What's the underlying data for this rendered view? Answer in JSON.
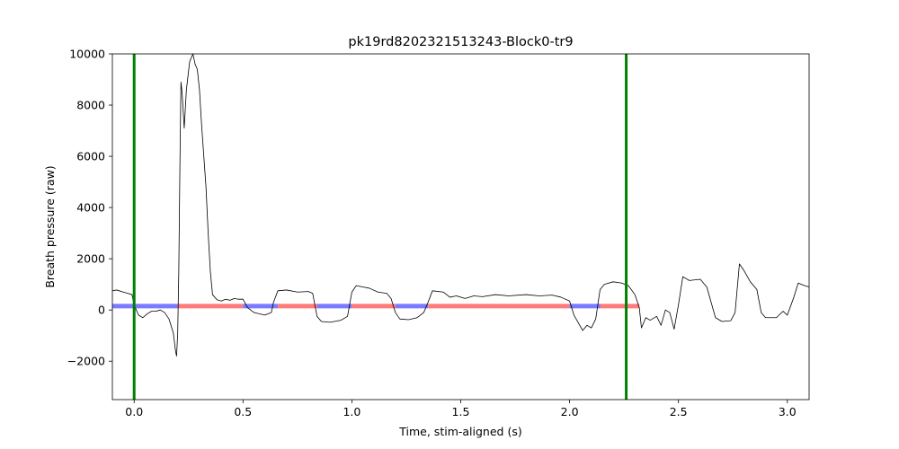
{
  "chart_data": {
    "type": "line",
    "title": "pk19rd8202321513243-Block0-tr9",
    "xlabel": "Time, stim-aligned (s)",
    "ylabel": "Breath pressure (raw)",
    "xlim": [
      -0.1,
      3.1
    ],
    "ylim": [
      -3500,
      10000
    ],
    "xticks": [
      0.0,
      0.5,
      1.0,
      1.5,
      2.0,
      2.5,
      3.0
    ],
    "xtick_labels": [
      "0.0",
      "0.5",
      "1.0",
      "1.5",
      "2.0",
      "2.5",
      "3.0"
    ],
    "yticks": [
      -2000,
      0,
      2000,
      4000,
      6000,
      8000,
      10000
    ],
    "ytick_labels": [
      "−2000",
      "0",
      "2000",
      "4000",
      "6000",
      "8000",
      "10000"
    ],
    "grid": false,
    "series": [
      {
        "color": "#000000",
        "points": [
          [
            -0.1,
            750
          ],
          [
            -0.08,
            780
          ],
          [
            -0.05,
            700
          ],
          [
            -0.03,
            650
          ],
          [
            -0.01,
            600
          ],
          [
            0.0,
            200
          ],
          [
            0.02,
            -200
          ],
          [
            0.04,
            -300
          ],
          [
            0.06,
            -150
          ],
          [
            0.08,
            -50
          ],
          [
            0.1,
            -50
          ],
          [
            0.12,
            0
          ],
          [
            0.14,
            -100
          ],
          [
            0.16,
            -350
          ],
          [
            0.18,
            -900
          ],
          [
            0.19,
            -1600
          ],
          [
            0.195,
            -1800
          ],
          [
            0.2,
            -900
          ],
          [
            0.205,
            1500
          ],
          [
            0.21,
            5500
          ],
          [
            0.215,
            8900
          ],
          [
            0.22,
            8500
          ],
          [
            0.23,
            7100
          ],
          [
            0.24,
            8600
          ],
          [
            0.255,
            9700
          ],
          [
            0.27,
            10000
          ],
          [
            0.28,
            9600
          ],
          [
            0.29,
            9400
          ],
          [
            0.3,
            8600
          ],
          [
            0.31,
            7200
          ],
          [
            0.32,
            6000
          ],
          [
            0.33,
            4800
          ],
          [
            0.34,
            3000
          ],
          [
            0.35,
            1500
          ],
          [
            0.36,
            600
          ],
          [
            0.38,
            400
          ],
          [
            0.4,
            350
          ],
          [
            0.42,
            420
          ],
          [
            0.44,
            380
          ],
          [
            0.46,
            450
          ],
          [
            0.48,
            420
          ],
          [
            0.5,
            420
          ],
          [
            0.52,
            100
          ],
          [
            0.55,
            -100
          ],
          [
            0.6,
            -200
          ],
          [
            0.63,
            -100
          ],
          [
            0.64,
            300
          ],
          [
            0.66,
            750
          ],
          [
            0.7,
            780
          ],
          [
            0.75,
            700
          ],
          [
            0.8,
            720
          ],
          [
            0.82,
            650
          ],
          [
            0.84,
            -250
          ],
          [
            0.86,
            -450
          ],
          [
            0.9,
            -480
          ],
          [
            0.95,
            -400
          ],
          [
            0.98,
            -250
          ],
          [
            1.0,
            700
          ],
          [
            1.02,
            950
          ],
          [
            1.05,
            900
          ],
          [
            1.08,
            850
          ],
          [
            1.12,
            700
          ],
          [
            1.16,
            650
          ],
          [
            1.18,
            450
          ],
          [
            1.2,
            -100
          ],
          [
            1.22,
            -350
          ],
          [
            1.26,
            -380
          ],
          [
            1.3,
            -300
          ],
          [
            1.33,
            -100
          ],
          [
            1.35,
            300
          ],
          [
            1.37,
            750
          ],
          [
            1.42,
            700
          ],
          [
            1.45,
            500
          ],
          [
            1.48,
            550
          ],
          [
            1.52,
            450
          ],
          [
            1.56,
            550
          ],
          [
            1.6,
            520
          ],
          [
            1.66,
            600
          ],
          [
            1.72,
            550
          ],
          [
            1.8,
            600
          ],
          [
            1.86,
            550
          ],
          [
            1.92,
            580
          ],
          [
            1.96,
            500
          ],
          [
            2.0,
            350
          ],
          [
            2.02,
            -200
          ],
          [
            2.04,
            -500
          ],
          [
            2.06,
            -800
          ],
          [
            2.08,
            -600
          ],
          [
            2.1,
            -700
          ],
          [
            2.12,
            -350
          ],
          [
            2.14,
            800
          ],
          [
            2.16,
            1000
          ],
          [
            2.2,
            1100
          ],
          [
            2.24,
            1050
          ],
          [
            2.27,
            950
          ],
          [
            2.3,
            600
          ],
          [
            2.32,
            100
          ],
          [
            2.33,
            -700
          ],
          [
            2.35,
            -300
          ],
          [
            2.37,
            -400
          ],
          [
            2.4,
            -250
          ],
          [
            2.42,
            -600
          ],
          [
            2.44,
            0
          ],
          [
            2.46,
            -100
          ],
          [
            2.48,
            -750
          ],
          [
            2.5,
            200
          ],
          [
            2.52,
            1300
          ],
          [
            2.55,
            1150
          ],
          [
            2.6,
            1200
          ],
          [
            2.63,
            900
          ],
          [
            2.65,
            300
          ],
          [
            2.67,
            -300
          ],
          [
            2.7,
            -450
          ],
          [
            2.74,
            -420
          ],
          [
            2.76,
            -100
          ],
          [
            2.78,
            1800
          ],
          [
            2.8,
            1550
          ],
          [
            2.83,
            1100
          ],
          [
            2.86,
            800
          ],
          [
            2.88,
            -100
          ],
          [
            2.9,
            -300
          ],
          [
            2.95,
            -300
          ],
          [
            2.98,
            -50
          ],
          [
            3.0,
            -200
          ],
          [
            3.03,
            500
          ],
          [
            3.05,
            1050
          ],
          [
            3.08,
            950
          ],
          [
            3.1,
            900
          ]
        ]
      }
    ],
    "vertical_lines": [
      {
        "x": 0.0,
        "color": "#008000"
      },
      {
        "x": 2.26,
        "color": "#008000"
      }
    ],
    "horizontal_segments": [
      {
        "y": 150,
        "x_start": -0.1,
        "x_end": 0.2,
        "color": "#7b7bff"
      },
      {
        "y": 150,
        "x_start": 0.2,
        "x_end": 0.5,
        "color": "#ff7b7b"
      },
      {
        "y": 150,
        "x_start": 0.5,
        "x_end": 0.66,
        "color": "#7b7bff"
      },
      {
        "y": 150,
        "x_start": 0.66,
        "x_end": 0.84,
        "color": "#ff7b7b"
      },
      {
        "y": 150,
        "x_start": 0.84,
        "x_end": 1.0,
        "color": "#7b7bff"
      },
      {
        "y": 150,
        "x_start": 1.0,
        "x_end": 1.2,
        "color": "#ff7b7b"
      },
      {
        "y": 150,
        "x_start": 1.2,
        "x_end": 1.35,
        "color": "#7b7bff"
      },
      {
        "y": 150,
        "x_start": 1.35,
        "x_end": 2.0,
        "color": "#ff7b7b"
      },
      {
        "y": 150,
        "x_start": 2.0,
        "x_end": 2.14,
        "color": "#7b7bff"
      },
      {
        "y": 150,
        "x_start": 2.14,
        "x_end": 2.32,
        "color": "#ff7b7b"
      }
    ]
  }
}
